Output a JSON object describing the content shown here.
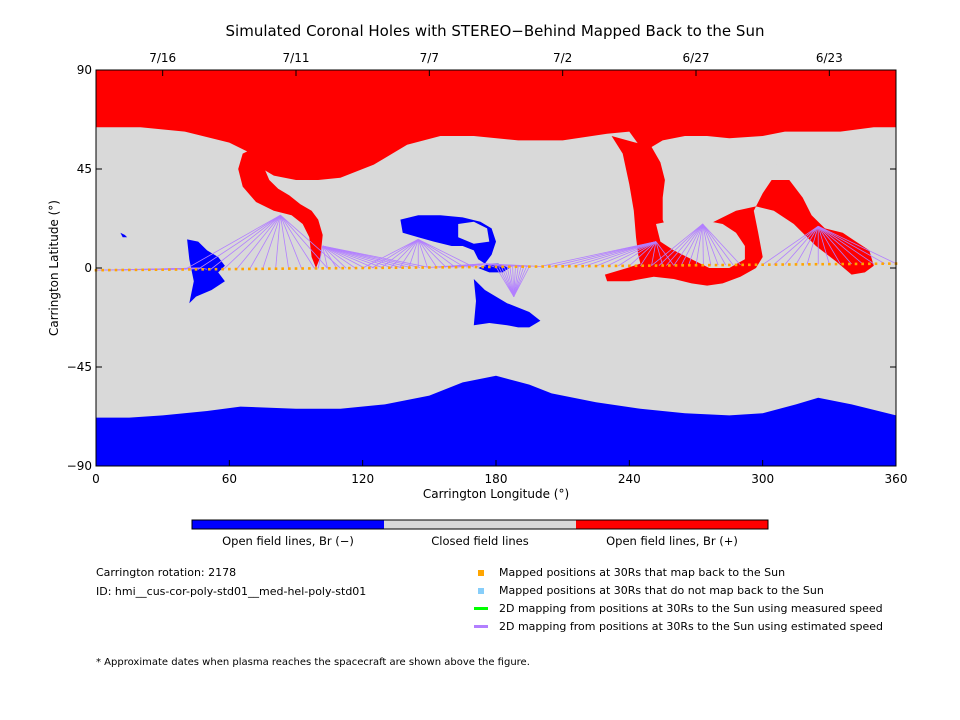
{
  "chart_data": {
    "type": "map",
    "title": "Simulated Coronal Holes with STEREO−Behind Mapped Back to the Sun",
    "xlabel": "Carrington Longitude (°)",
    "ylabel": "Carrington Latitude (°)",
    "xlim": [
      0,
      360
    ],
    "ylim": [
      -90,
      90
    ],
    "x_ticks": [
      "0",
      "60",
      "120",
      "180",
      "240",
      "300",
      "360"
    ],
    "y_ticks": [
      "−90",
      "−45",
      "0",
      "45",
      "90"
    ],
    "date_ticks": [
      {
        "label": "7/16",
        "lon": 30
      },
      {
        "label": "7/11",
        "lon": 90
      },
      {
        "label": "7/7",
        "lon": 150
      },
      {
        "label": "7/2",
        "lon": 210
      },
      {
        "label": "6/27",
        "lon": 270
      },
      {
        "label": "6/23",
        "lon": 330
      }
    ],
    "colors": {
      "open_negative": "#0000ff",
      "closed": "#d9d9d9",
      "open_positive": "#ff0000",
      "mapped": "#ffa500",
      "unmapped": "#87cefa",
      "measured": "#00ff00",
      "estimated": "#b27fff"
    },
    "north_boundary": [
      [
        0,
        64
      ],
      [
        20,
        64
      ],
      [
        40,
        62
      ],
      [
        60,
        57
      ],
      [
        70,
        52
      ],
      [
        75,
        45
      ],
      [
        80,
        42
      ],
      [
        90,
        40
      ],
      [
        100,
        40
      ],
      [
        110,
        41
      ],
      [
        125,
        47
      ],
      [
        140,
        56
      ],
      [
        155,
        60
      ],
      [
        170,
        60
      ],
      [
        190,
        58
      ],
      [
        210,
        58
      ],
      [
        230,
        61
      ],
      [
        240,
        62
      ],
      [
        245,
        55
      ],
      [
        250,
        55
      ],
      [
        255,
        58
      ],
      [
        265,
        60
      ],
      [
        275,
        60
      ],
      [
        285,
        59
      ],
      [
        300,
        60
      ],
      [
        310,
        62
      ],
      [
        320,
        62
      ],
      [
        335,
        62
      ],
      [
        350,
        64
      ],
      [
        360,
        64
      ]
    ],
    "south_boundary": [
      [
        0,
        -68
      ],
      [
        15,
        -68
      ],
      [
        30,
        -67
      ],
      [
        50,
        -65
      ],
      [
        65,
        -63
      ],
      [
        90,
        -64
      ],
      [
        110,
        -64
      ],
      [
        130,
        -62
      ],
      [
        150,
        -58
      ],
      [
        165,
        -52
      ],
      [
        180,
        -49
      ],
      [
        195,
        -53
      ],
      [
        205,
        -57
      ],
      [
        225,
        -61
      ],
      [
        245,
        -64
      ],
      [
        265,
        -66
      ],
      [
        285,
        -67
      ],
      [
        300,
        -66
      ],
      [
        315,
        -62
      ],
      [
        325,
        -59
      ],
      [
        340,
        -62
      ],
      [
        360,
        -67
      ]
    ],
    "regions": [
      {
        "polarity": "positive",
        "points": [
          [
            70,
            54
          ],
          [
            75,
            47
          ],
          [
            78,
            40
          ],
          [
            82,
            36
          ],
          [
            87,
            33
          ],
          [
            92,
            29
          ],
          [
            97,
            26
          ],
          [
            100,
            22
          ],
          [
            102,
            15
          ],
          [
            101,
            5
          ],
          [
            99,
            0
          ],
          [
            97,
            5
          ],
          [
            96,
            14
          ],
          [
            93,
            20
          ],
          [
            88,
            24
          ],
          [
            80,
            26
          ],
          [
            72,
            30
          ],
          [
            66,
            37
          ],
          [
            64,
            45
          ],
          [
            66,
            52
          ]
        ]
      },
      {
        "polarity": "positive",
        "points": [
          [
            232,
            60
          ],
          [
            237,
            52
          ],
          [
            240,
            38
          ],
          [
            242,
            26
          ],
          [
            243,
            14
          ],
          [
            244,
            6
          ],
          [
            245,
            2
          ],
          [
            239,
            0
          ],
          [
            229,
            -3
          ],
          [
            230,
            -6
          ],
          [
            240,
            -6
          ],
          [
            251,
            -4
          ],
          [
            260,
            -5
          ],
          [
            268,
            -7
          ],
          [
            275,
            -8
          ],
          [
            282,
            -7
          ],
          [
            290,
            -4
          ],
          [
            297,
            0
          ],
          [
            300,
            5
          ],
          [
            298,
            16
          ],
          [
            296,
            26
          ],
          [
            300,
            34
          ],
          [
            304,
            40
          ],
          [
            312,
            40
          ],
          [
            318,
            32
          ],
          [
            322,
            24
          ],
          [
            328,
            18
          ],
          [
            336,
            16
          ],
          [
            342,
            12
          ],
          [
            348,
            8
          ],
          [
            350,
            1
          ],
          [
            346,
            -2
          ],
          [
            340,
            -3
          ],
          [
            333,
            3
          ],
          [
            324,
            10
          ],
          [
            314,
            20
          ],
          [
            305,
            26
          ],
          [
            297,
            28
          ],
          [
            288,
            26
          ],
          [
            276,
            20
          ],
          [
            266,
            14
          ],
          [
            258,
            14
          ],
          [
            255,
            22
          ],
          [
            255,
            32
          ],
          [
            256,
            40
          ],
          [
            254,
            48
          ],
          [
            250,
            55
          ]
        ]
      },
      {
        "polarity": "closed",
        "points": [
          [
            252,
            20
          ],
          [
            262,
            22
          ],
          [
            272,
            22
          ],
          [
            282,
            20
          ],
          [
            288,
            16
          ],
          [
            292,
            10
          ],
          [
            292,
            4
          ],
          [
            285,
            0
          ],
          [
            276,
            0
          ],
          [
            268,
            4
          ],
          [
            260,
            8
          ],
          [
            254,
            12
          ]
        ]
      },
      {
        "polarity": "closed",
        "points": [
          [
            276,
            54
          ],
          [
            285,
            56
          ],
          [
            298,
            56
          ],
          [
            306,
            54
          ],
          [
            310,
            50
          ],
          [
            306,
            47
          ],
          [
            298,
            46
          ],
          [
            288,
            47
          ],
          [
            281,
            46
          ],
          [
            276,
            49
          ]
        ]
      },
      {
        "polarity": "negative",
        "points": [
          [
            41,
            13
          ],
          [
            46,
            12
          ],
          [
            50,
            8
          ],
          [
            55,
            5
          ],
          [
            58,
            1
          ],
          [
            55,
            -2
          ],
          [
            58,
            -6
          ],
          [
            52,
            -10
          ],
          [
            45,
            -13
          ],
          [
            42,
            -16
          ],
          [
            44,
            -6
          ],
          [
            42,
            4
          ]
        ]
      },
      {
        "polarity": "negative",
        "points": [
          [
            11,
            16
          ],
          [
            13,
            15
          ],
          [
            14,
            14
          ],
          [
            12,
            14
          ]
        ]
      },
      {
        "polarity": "negative",
        "points": [
          [
            137,
            22
          ],
          [
            145,
            24
          ],
          [
            155,
            24
          ],
          [
            165,
            23
          ],
          [
            173,
            21
          ],
          [
            178,
            18
          ],
          [
            180,
            12
          ],
          [
            178,
            6
          ],
          [
            175,
            2
          ],
          [
            172,
            4
          ],
          [
            170,
            8
          ],
          [
            165,
            10
          ],
          [
            160,
            10
          ],
          [
            152,
            12
          ],
          [
            145,
            14
          ],
          [
            138,
            16
          ]
        ]
      },
      {
        "polarity": "closed",
        "points": [
          [
            163,
            20
          ],
          [
            170,
            21
          ],
          [
            176,
            18
          ],
          [
            177,
            12
          ],
          [
            170,
            11
          ],
          [
            163,
            14
          ]
        ]
      },
      {
        "polarity": "negative",
        "points": [
          [
            172,
            0
          ],
          [
            177,
            2
          ],
          [
            181,
            2
          ],
          [
            186,
            0
          ],
          [
            183,
            -2
          ],
          [
            177,
            -2
          ]
        ]
      },
      {
        "polarity": "negative",
        "points": [
          [
            170,
            -5
          ],
          [
            175,
            -10
          ],
          [
            185,
            -16
          ],
          [
            195,
            -20
          ],
          [
            200,
            -24
          ],
          [
            195,
            -27
          ],
          [
            190,
            -27
          ],
          [
            185,
            -26
          ],
          [
            177,
            -25
          ],
          [
            170,
            -26
          ],
          [
            171,
            -15
          ]
        ]
      }
    ],
    "spacecraft_track": [
      [
        0,
        -1
      ],
      [
        60,
        -1
      ],
      [
        120,
        0
      ],
      [
        180,
        0
      ],
      [
        240,
        1
      ],
      [
        300,
        1
      ],
      [
        360,
        2
      ]
    ],
    "mapping_fans": [
      {
        "lon": [
          0,
          50
        ],
        "foot": [
          47,
          0
        ]
      },
      {
        "lon": [
          40,
          110
        ],
        "foot": [
          83,
          24
        ]
      },
      {
        "lon": [
          100,
          150
        ],
        "foot": [
          102,
          10
        ]
      },
      {
        "lon": [
          120,
          170
        ],
        "foot": [
          145,
          13
        ]
      },
      {
        "lon": [
          150,
          200
        ],
        "foot": [
          175,
          2
        ]
      },
      {
        "lon": [
          180,
          195
        ],
        "foot": [
          188,
          -13
        ]
      },
      {
        "lon": [
          200,
          260
        ],
        "foot": [
          252,
          12
        ]
      },
      {
        "lon": [
          250,
          290
        ],
        "foot": [
          273,
          20
        ]
      },
      {
        "lon": [
          300,
          360
        ],
        "foot": [
          325,
          19
        ]
      }
    ],
    "colorbar": {
      "labels": [
        "Open field lines, Br (−)",
        "Closed field lines",
        "Open field lines, Br (+)"
      ]
    },
    "legend": [
      {
        "kind": "square",
        "color": "#ffa500",
        "label": "Mapped positions at 30Rs that map back to the Sun"
      },
      {
        "kind": "square",
        "color": "#87cefa",
        "label": "Mapped positions at 30Rs that do not map back to the Sun"
      },
      {
        "kind": "line",
        "color": "#00ff00",
        "label": "2D mapping from positions at 30Rs to the Sun using measured speed"
      },
      {
        "kind": "line",
        "color": "#b27fff",
        "label": "2D mapping from positions at 30Rs to the Sun using estimated speed"
      }
    ]
  },
  "info": {
    "rotation": "Carrington rotation: 2178",
    "id": "ID: hmi__cus-cor-poly-std01__med-hel-poly-std01"
  },
  "footnote": "* Approximate dates when plasma reaches the spacecraft are shown above the figure."
}
